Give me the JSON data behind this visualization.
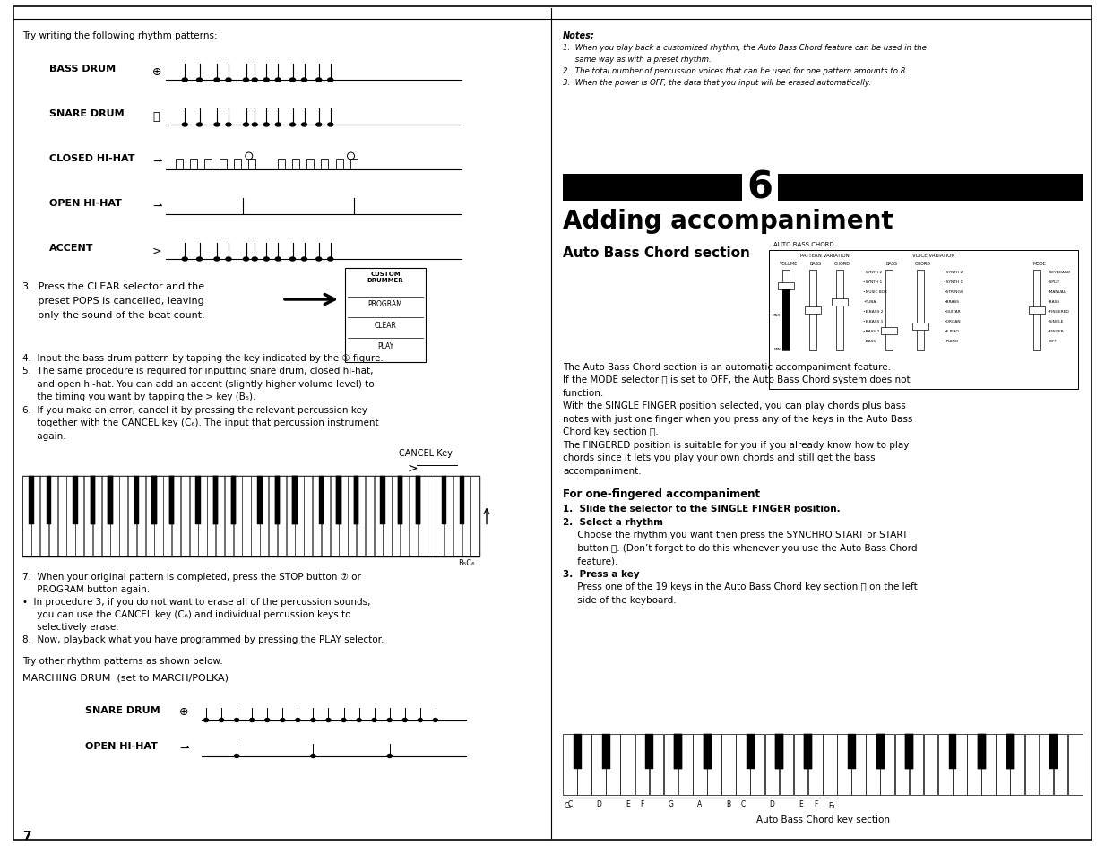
{
  "page_bg": "#ffffff",
  "figsize": [
    12.33,
    9.54
  ],
  "dpi": 100,
  "notes_header": "Notes:",
  "notes_lines": [
    "1.  When you play back a customized rhythm, the Auto Bass Chord feature can be used in the",
    "     same way as with a preset rhythm.",
    "2.  The total number of percussion voices that can be used for one pattern amounts to 8.",
    "3.  When the power is OFF, the data that you input will be erased automatically."
  ],
  "chapter_num": "6",
  "chapter_title": "Adding accompaniment",
  "section_title": "Auto Bass Chord section",
  "auto_bass_label": "AUTO BASS CHORD",
  "pattern_var_label": "PATTERN VARIATION",
  "voice_var_label": "VOICE VARIATION",
  "slider_col_labels": [
    "VOLUME",
    "BASS",
    "CHORD",
    "BASS",
    "CHORD",
    "MODE"
  ],
  "voice_labels_bass": [
    "SYNTH 2",
    "SYNTH 1",
    "MUSIC BOX",
    "TUBA",
    "E.BASS 2",
    "E.BASS 1",
    "BASS 2",
    "BASS"
  ],
  "voice_labels_chord": [
    "SYNTH 2",
    "SYNTH 1",
    "STRINGS",
    "BRASS",
    "GUITAR",
    "ORGAN",
    "E.PIAO",
    "PIANO"
  ],
  "mode_labels": [
    "KEYBOARD",
    "SPLIT",
    "MANUAL",
    "BASS",
    "FINGERED",
    "SINGLE",
    "FINGER",
    "OFF"
  ],
  "body_lines": [
    "The Auto Bass Chord section is an automatic accompaniment feature.",
    "If the MODE selector ⒢ is set to OFF, the Auto Bass Chord system does not",
    "function.",
    "With the SINGLE FINGER position selected, you can play chords plus bass",
    "notes with just one finger when you press any of the keys in the Auto Bass",
    "Chord key section ⒣.",
    "The FINGERED position is suitable for you if you already know how to play",
    "chords since it lets you play your own chords and still get the bass",
    "accompaniment."
  ],
  "for_one_title": "For one-fingered accompaniment",
  "steps_right": [
    {
      "text": "1.  Slide the selector to the SINGLE FINGER position.",
      "bold": true
    },
    {
      "text": "2.  Select a rhythm",
      "bold": true
    },
    {
      "text": "     Choose the rhythm you want then press the SYNCHRO START or START",
      "bold": false
    },
    {
      "text": "     button ⒩. (Don’t forget to do this whenever you use the Auto Bass Chord",
      "bold": false
    },
    {
      "text": "     feature).",
      "bold": false
    },
    {
      "text": "3.  Press a key",
      "bold": true
    },
    {
      "text": "     Press one of the 19 keys in the Auto Bass Chord key section ⒣ on the left",
      "bold": false
    },
    {
      "text": "     side of the keyboard.",
      "bold": false
    }
  ],
  "kbd_caption": "Auto Bass Chord key section",
  "left_intro": "Try writing the following rhythm patterns:",
  "rhythm_labels": [
    "BASS DRUM",
    "SNARE DRUM",
    "CLOSED HI-HAT",
    "OPEN HI-HAT",
    "ACCENT"
  ],
  "step3_left_lines": [
    "3.  Press the CLEAR selector and the",
    "     preset POPS is cancelled, leaving",
    "     only the sound of the beat count."
  ],
  "box_labels": [
    "CUSTOM\nDRUMMER",
    "PROGRAM",
    "CLEAR",
    "PLAY"
  ],
  "steps46_lines": [
    "4.  Input the bass drum pattern by tapping the key indicated by the ① figure.",
    "5.  The same procedure is required for inputting snare drum, closed hi-hat,",
    "     and open hi-hat. You can add an accent (slightly higher volume level) to",
    "     the timing you want by tapping the > key (B₅).",
    "6.  If you make an error, cancel it by pressing the relevant percussion key",
    "     together with the CANCEL key (C₆). The input that percussion instrument",
    "     again."
  ],
  "cancel_key": "CANCEL Key",
  "steps78_lines": [
    "7.  When your original pattern is completed, press the STOP button ⑦ or",
    "     PROGRAM button again.",
    "•  In procedure 3, if you do not want to erase all of the percussion sounds,",
    "     you can use the CANCEL key (C₆) and individual percussion keys to",
    "     selectively erase.",
    "8.  Now, playback what you have programmed by pressing the PLAY selector."
  ],
  "try_other": "Try other rhythm patterns as shown below:",
  "marching_label": "MARCHING DRUM  (set to MARCH/POLKA)",
  "bottom_labels": [
    "SNARE DRUM",
    "OPEN HI-HAT"
  ],
  "page_num": "7"
}
